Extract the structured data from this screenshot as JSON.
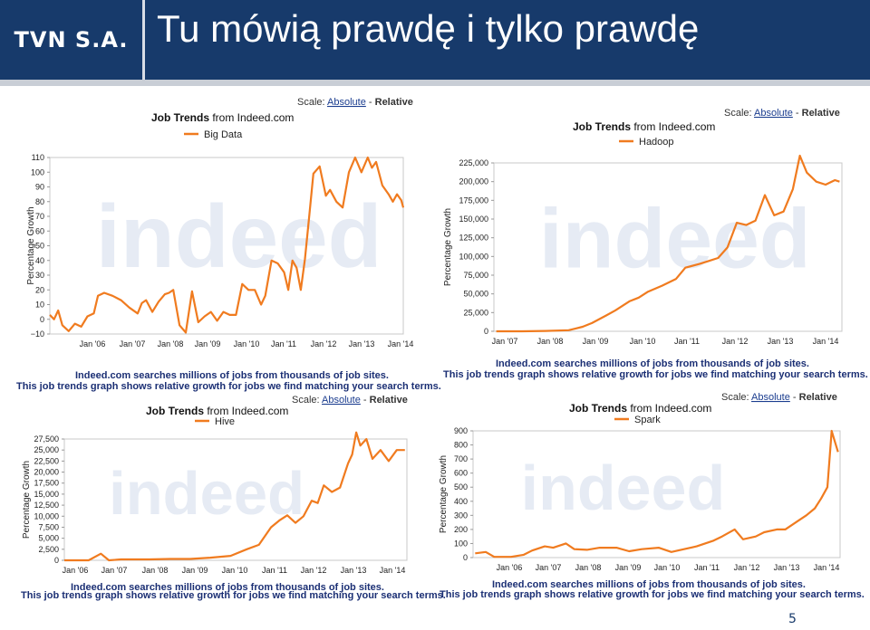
{
  "header": {
    "logo": "TVN S.A.",
    "title": "Tu mówią prawdę i tylko prawdę"
  },
  "page_number": "5",
  "colors": {
    "header_bg": "#173a6b",
    "series": "#f07b1f",
    "link": "#1b3d8f"
  },
  "chart_data": [
    {
      "type": "line",
      "title": "Job Trends from Indeed.com",
      "scale": {
        "label": "Scale:",
        "absolute": "Absolute",
        "relative": "Relative"
      },
      "ylabel": "Percentage Growth",
      "ylim": [
        -10,
        110
      ],
      "yticks": [
        "110",
        "100",
        "90",
        "80",
        "70",
        "60",
        "50",
        "40",
        "30",
        "20",
        "10",
        "0",
        "−10"
      ],
      "xticks": [
        "Jan '06",
        "Jan '07",
        "Jan '08",
        "Jan '09",
        "Jan '10",
        "Jan '11",
        "Jan '12",
        "Jan '13",
        "Jan '14"
      ],
      "xlim": [
        2005.9,
        2014.35
      ],
      "series": [
        {
          "name": "Big Data",
          "x": [
            2005.9,
            2006.0,
            2006.1,
            2006.2,
            2006.35,
            2006.5,
            2006.65,
            2006.8,
            2006.95,
            2007.05,
            2007.2,
            2007.4,
            2007.6,
            2007.8,
            2008.0,
            2008.1,
            2008.2,
            2008.35,
            2008.5,
            2008.65,
            2008.75,
            2008.85,
            2009.0,
            2009.15,
            2009.3,
            2009.45,
            2009.6,
            2009.75,
            2009.9,
            2010.05,
            2010.2,
            2010.35,
            2010.5,
            2010.65,
            2010.8,
            2010.95,
            2011.05,
            2011.2,
            2011.35,
            2011.5,
            2011.6,
            2011.7,
            2011.8,
            2011.9,
            2012.0,
            2012.1,
            2012.2,
            2012.35,
            2012.5,
            2012.6,
            2012.75,
            2012.9,
            2013.05,
            2013.2,
            2013.35,
            2013.5,
            2013.6,
            2013.7,
            2013.85,
            2014.0,
            2014.1,
            2014.2,
            2014.3,
            2014.35
          ],
          "values": [
            3,
            0,
            6,
            -4,
            -8,
            -3,
            -5,
            2,
            4,
            16,
            18,
            16,
            13,
            8,
            4,
            11,
            13,
            5,
            12,
            17,
            18,
            20,
            -4,
            -9,
            19,
            -2,
            2,
            5,
            -1,
            5,
            3,
            3,
            24,
            20,
            20,
            10,
            16,
            40,
            38,
            32,
            20,
            40,
            35,
            20,
            41,
            70,
            99,
            104,
            84,
            88,
            80,
            76,
            100,
            110,
            100,
            110,
            103,
            107,
            91,
            85,
            80,
            85,
            81,
            76
          ]
        }
      ],
      "footer_line1": "Indeed.com searches millions of jobs from thousands of job sites.",
      "footer_line2": "This job trends graph shows relative growth for jobs we find matching your search terms."
    },
    {
      "type": "line",
      "title": "Job Trends from Indeed.com",
      "scale": {
        "label": "Scale:",
        "absolute": "Absolute",
        "relative": "Relative"
      },
      "ylabel": "Percentage Growth",
      "ylim": [
        0,
        225000
      ],
      "yticks": [
        "225,000",
        "200,000",
        "175,000",
        "150,000",
        "125,000",
        "100,000",
        "75,000",
        "50,000",
        "25,000",
        "0"
      ],
      "xticks": [
        "Jan '07",
        "Jan '08",
        "Jan '09",
        "Jan '10",
        "Jan '11",
        "Jan '12",
        "Jan '13",
        "Jan '14"
      ],
      "xlim": [
        2006.9,
        2014.35
      ],
      "series": [
        {
          "name": "Hadoop",
          "x": [
            2006.95,
            2007.5,
            2008.0,
            2008.5,
            2008.8,
            2009.0,
            2009.3,
            2009.5,
            2009.8,
            2010.0,
            2010.2,
            2010.5,
            2010.8,
            2011.0,
            2011.3,
            2011.5,
            2011.7,
            2011.9,
            2012.1,
            2012.3,
            2012.5,
            2012.7,
            2012.9,
            2013.1,
            2013.3,
            2013.45,
            2013.6,
            2013.8,
            2014.0,
            2014.2,
            2014.3
          ],
          "values": [
            0,
            0,
            500,
            1500,
            6000,
            11000,
            21000,
            28000,
            40000,
            45000,
            53000,
            61000,
            70000,
            85000,
            90000,
            94000,
            98000,
            112000,
            145000,
            142000,
            148000,
            182000,
            155000,
            160000,
            190000,
            235000,
            212000,
            200000,
            196000,
            202000,
            200000
          ]
        }
      ],
      "footer_line1": "Indeed.com searches millions of jobs from thousands of job sites.",
      "footer_line2": "This job trends graph shows relative growth for jobs we find matching your search terms."
    },
    {
      "type": "line",
      "title": "Job Trends from Indeed.com",
      "scale": {
        "label": "Scale:",
        "absolute": "Absolute",
        "relative": "Relative"
      },
      "ylabel": "Percentage Growth",
      "ylim": [
        0,
        27500
      ],
      "yticks": [
        "27,500",
        "25,000",
        "22,500",
        "20,000",
        "17,500",
        "15,000",
        "12,500",
        "10,000",
        "7,500",
        "5,000",
        "2,500",
        "0"
      ],
      "xticks": [
        "Jan '06",
        "Jan '07",
        "Jan '08",
        "Jan '09",
        "Jan '10",
        "Jan '11",
        "Jan '12",
        "Jan '13",
        "Jan '14"
      ],
      "xlim": [
        2005.9,
        2014.35
      ],
      "series": [
        {
          "name": "Hive",
          "x": [
            2005.9,
            2006.5,
            2006.8,
            2007.0,
            2007.3,
            2007.8,
            2008.0,
            2008.5,
            2009.0,
            2009.5,
            2010.0,
            2010.4,
            2010.7,
            2011.0,
            2011.2,
            2011.4,
            2011.6,
            2011.8,
            2012.0,
            2012.15,
            2012.3,
            2012.5,
            2012.7,
            2012.9,
            2013.0,
            2013.1,
            2013.2,
            2013.35,
            2013.5,
            2013.7,
            2013.9,
            2014.1,
            2014.3
          ],
          "values": [
            0,
            0,
            1500,
            0,
            200,
            200,
            200,
            300,
            300,
            600,
            1000,
            2500,
            3500,
            7500,
            9000,
            10200,
            8500,
            10000,
            13500,
            13000,
            17000,
            15500,
            16500,
            22000,
            24000,
            29000,
            26000,
            27500,
            23000,
            25000,
            22500,
            25000,
            25000
          ]
        }
      ],
      "footer_line1": "Indeed.com searches millions of jobs from thousands of job sites.",
      "footer_line2": "This job trends graph shows relative growth for jobs we find matching your search terms."
    },
    {
      "type": "line",
      "title": "Job Trends from Indeed.com",
      "scale": {
        "label": "Scale:",
        "absolute": "Absolute",
        "relative": "Relative"
      },
      "ylabel": "Percentage Growth",
      "ylim": [
        0,
        900
      ],
      "yticks": [
        "900",
        "800",
        "700",
        "600",
        "500",
        "400",
        "300",
        "200",
        "100",
        "0"
      ],
      "xticks": [
        "Jan '06",
        "Jan '07",
        "Jan '08",
        "Jan '09",
        "Jan '10",
        "Jan '11",
        "Jan '12",
        "Jan '13",
        "Jan '14"
      ],
      "xlim": [
        2005.6,
        2014.3
      ],
      "series": [
        {
          "name": "Spark",
          "x": [
            2005.65,
            2005.9,
            2006.1,
            2006.5,
            2006.8,
            2007.0,
            2007.3,
            2007.5,
            2007.8,
            2008.0,
            2008.3,
            2008.6,
            2009.0,
            2009.3,
            2009.6,
            2010.0,
            2010.3,
            2010.6,
            2010.9,
            2011.1,
            2011.3,
            2011.5,
            2011.8,
            2012.0,
            2012.3,
            2012.5,
            2012.8,
            2013.0,
            2013.3,
            2013.5,
            2013.7,
            2013.85,
            2014.0,
            2014.1,
            2014.15,
            2014.25
          ],
          "values": [
            30,
            40,
            5,
            5,
            20,
            50,
            80,
            70,
            100,
            60,
            55,
            70,
            70,
            45,
            60,
            70,
            40,
            60,
            80,
            100,
            120,
            150,
            200,
            130,
            150,
            180,
            200,
            200,
            260,
            300,
            350,
            420,
            500,
            900,
            850,
            750
          ]
        }
      ],
      "footer_line1": "Indeed.com searches millions of jobs from thousands of job sites.",
      "footer_line2": "This job trends graph shows relative growth for jobs we find matching your search terms."
    }
  ]
}
